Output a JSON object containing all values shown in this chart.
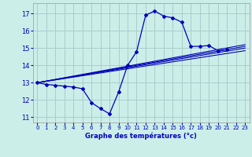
{
  "title": "Graphe des températures (°c)",
  "bg_color": "#cceee8",
  "grid_color": "#aacccc",
  "line_color": "#0000bb",
  "xlim": [
    -0.5,
    23.5
  ],
  "ylim": [
    10.7,
    17.6
  ],
  "xticks": [
    0,
    1,
    2,
    3,
    4,
    5,
    6,
    7,
    8,
    9,
    10,
    11,
    12,
    13,
    14,
    15,
    16,
    17,
    18,
    19,
    20,
    21,
    22,
    23
  ],
  "yticks": [
    11,
    12,
    13,
    14,
    15,
    16,
    17
  ],
  "main_line": {
    "x": [
      0,
      1,
      2,
      3,
      4,
      5,
      6,
      7,
      8,
      9,
      10,
      11,
      12,
      13,
      14,
      15,
      16,
      17,
      18,
      19,
      20,
      21,
      22,
      23
    ],
    "y": [
      13.0,
      12.9,
      12.85,
      12.8,
      12.75,
      12.65,
      11.85,
      11.5,
      11.2,
      12.45,
      14.0,
      14.8,
      16.9,
      17.15,
      16.85,
      16.75,
      16.5,
      15.1,
      15.1,
      15.15,
      14.85,
      14.9,
      null,
      null
    ]
  },
  "trend_lines": [
    {
      "x": [
        0,
        23
      ],
      "y": [
        13.0,
        14.85
      ]
    },
    {
      "x": [
        0,
        23
      ],
      "y": [
        13.0,
        15.0
      ]
    },
    {
      "x": [
        0,
        23
      ],
      "y": [
        13.0,
        15.1
      ]
    },
    {
      "x": [
        0,
        23
      ],
      "y": [
        13.0,
        15.2
      ]
    }
  ]
}
